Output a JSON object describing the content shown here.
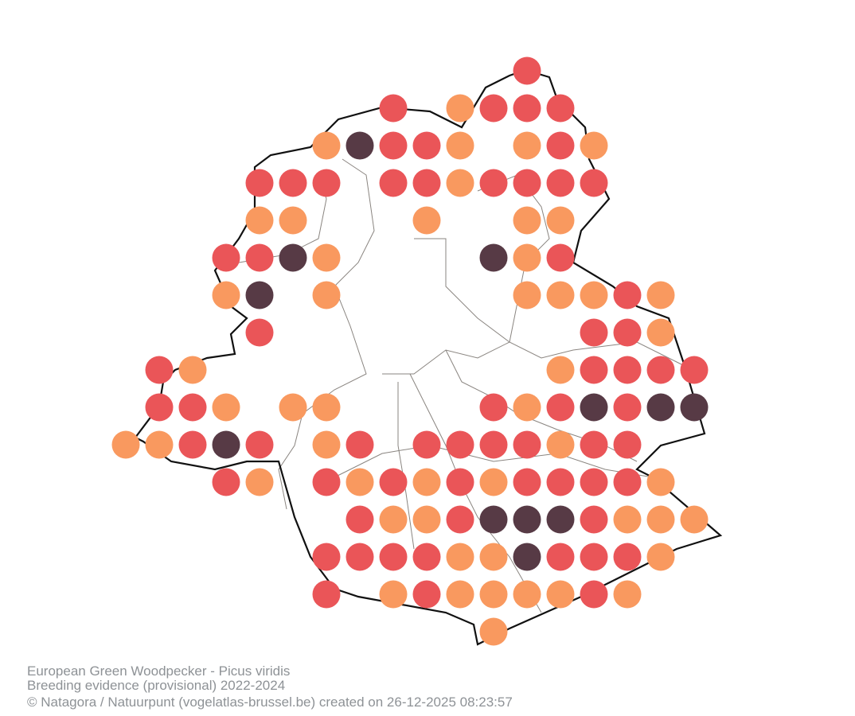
{
  "caption": {
    "title": "European Green Woodpecker - Picus viridis",
    "subtitle": "Breeding evidence (provisional) 2022-2024",
    "credit": "© Natagora / Natuurpunt (vogelatlas-brussel.be) created on 26-12-2025 08:23:57"
  }
}
